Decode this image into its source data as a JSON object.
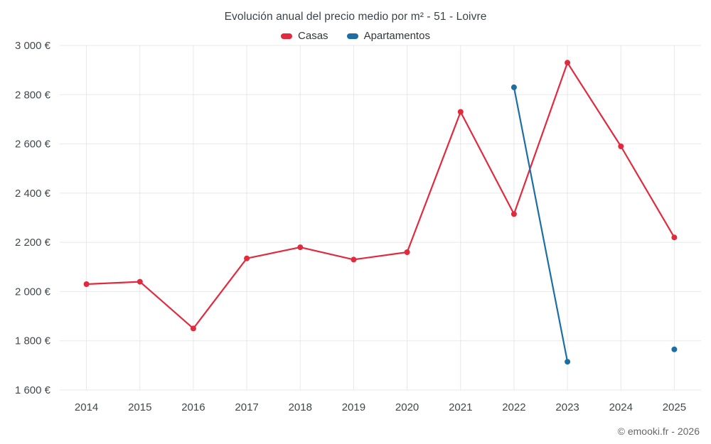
{
  "header": {
    "title": "Evolución anual del precio medio por m² - 51 - Loivre"
  },
  "footer": {
    "copyright": "© emooki.fr - 2026"
  },
  "chart_data": {
    "type": "line",
    "title": "Evolución anual del precio medio por m² - 51 - Loivre",
    "categories": [
      "2014",
      "2015",
      "2016",
      "2017",
      "2018",
      "2019",
      "2020",
      "2021",
      "2022",
      "2023",
      "2024",
      "2025"
    ],
    "series": [
      {
        "name": "Casas",
        "color": "#e22a3f",
        "values": [
          2030,
          2040,
          1850,
          2135,
          2180,
          2130,
          2160,
          2730,
          2315,
          2930,
          2590,
          2220
        ]
      },
      {
        "name": "Apartamentos",
        "color": "#1c6ea4",
        "values": [
          null,
          null,
          null,
          null,
          null,
          null,
          null,
          null,
          2830,
          1715,
          null,
          1765
        ]
      }
    ],
    "xlabel": "",
    "ylabel": "",
    "ylim": [
      1600,
      3000
    ],
    "y_tick_step": 200,
    "y_tick_suffix": " €",
    "grid": true,
    "legend_position": "top"
  }
}
